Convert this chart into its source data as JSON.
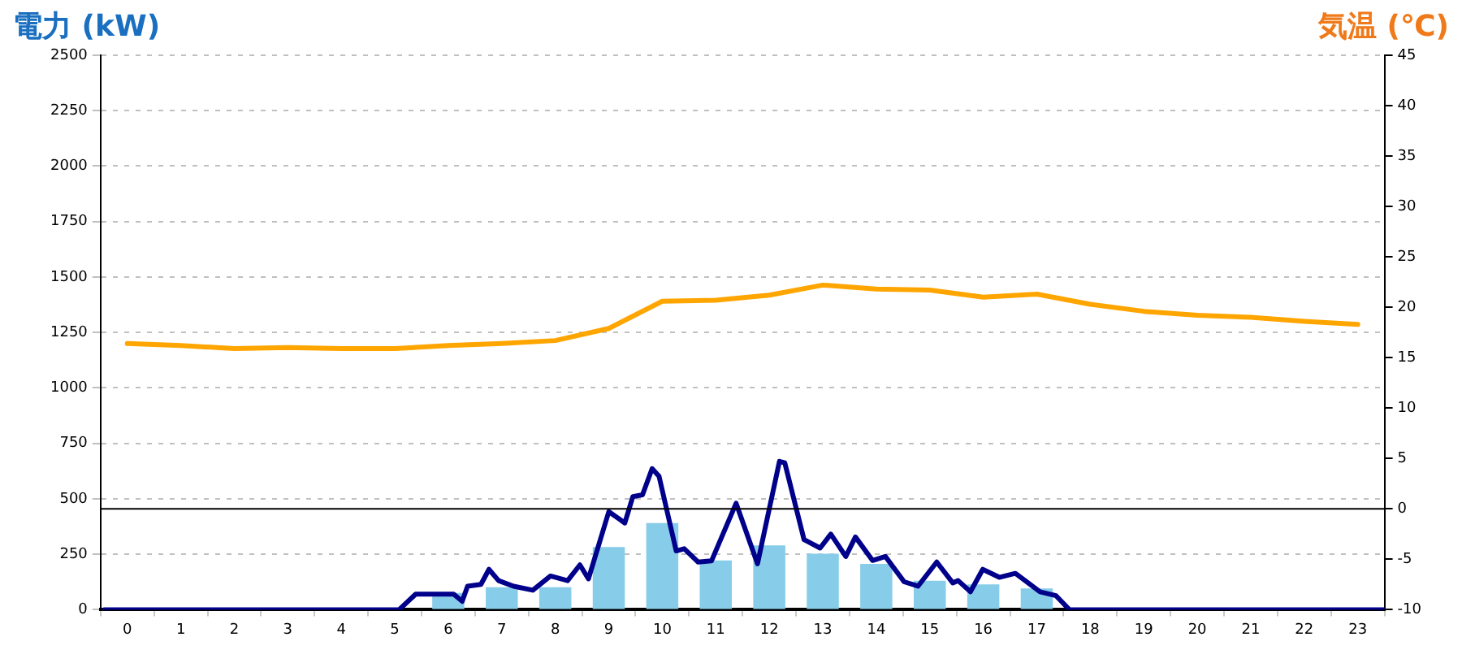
{
  "chart_data": {
    "type": "bar",
    "ylabel": "電力 (kW)",
    "y2label": "気温 (℃)",
    "x": [
      0,
      1,
      2,
      3,
      4,
      5,
      6,
      7,
      8,
      9,
      10,
      11,
      12,
      13,
      14,
      15,
      16,
      17,
      18,
      19,
      20,
      21,
      22,
      23
    ],
    "xlim": [
      -0.5,
      23.5
    ],
    "xticks": [
      0,
      1,
      2,
      3,
      4,
      5,
      6,
      7,
      8,
      9,
      10,
      11,
      12,
      13,
      14,
      15,
      16,
      17,
      18,
      19,
      20,
      21,
      22,
      23
    ],
    "ylim": [
      0,
      2500
    ],
    "yticks": [
      0,
      250,
      500,
      750,
      1000,
      1250,
      1500,
      1750,
      2000,
      2250,
      2500
    ],
    "y2lim": [
      -10,
      45
    ],
    "y2ticks": [
      -10,
      -5,
      0,
      5,
      10,
      15,
      20,
      25,
      30,
      35,
      40,
      45
    ],
    "grid": "y",
    "marker": "none",
    "ref_lines": [
      {
        "axis": "y2",
        "value": 0,
        "color": "#000000"
      }
    ],
    "series": [
      {
        "color": "#87cde9",
        "values": [
          0,
          0,
          0,
          0,
          0,
          0,
          76,
          101,
          101,
          283,
          391,
          222,
          290,
          252,
          207,
          131,
          114,
          96,
          0,
          0,
          0,
          0,
          0,
          0
        ]
      },
      {
        "type": "line",
        "color": "#00008b",
        "x": [
          -0.43,
          5.08,
          5.39,
          6.1,
          6.26,
          6.36,
          6.61,
          6.76,
          6.94,
          7.22,
          7.58,
          7.91,
          8.23,
          8.46,
          8.62,
          9.0,
          9.3,
          9.45,
          9.63,
          9.81,
          9.94,
          10.26,
          10.41,
          10.67,
          10.92,
          11.38,
          11.78,
          12.19,
          12.29,
          12.65,
          12.95,
          13.15,
          13.43,
          13.61,
          13.93,
          14.17,
          14.52,
          14.78,
          15.13,
          15.43,
          15.53,
          15.76,
          15.99,
          16.3,
          16.6,
          17.06,
          17.36,
          17.61,
          23.49
        ],
        "values": [
          0,
          0,
          70,
          70,
          38,
          106,
          114,
          182,
          131,
          106,
          88,
          152,
          131,
          202,
          139,
          442,
          391,
          510,
          518,
          636,
          601,
          265,
          275,
          215,
          220,
          480,
          207,
          669,
          662,
          316,
          278,
          341,
          240,
          328,
          222,
          240,
          126,
          106,
          215,
          121,
          131,
          81,
          182,
          146,
          164,
          81,
          63,
          0,
          0
        ]
      },
      {
        "type": "line",
        "axis": "y2",
        "color": "#ffa500",
        "values": [
          16.4,
          16.2,
          15.9,
          16.0,
          15.9,
          15.9,
          16.2,
          16.4,
          16.7,
          17.9,
          20.6,
          20.7,
          21.2,
          22.2,
          21.8,
          21.7,
          21.0,
          21.3,
          20.3,
          19.6,
          19.2,
          19.0,
          18.6,
          18.3
        ]
      }
    ]
  }
}
